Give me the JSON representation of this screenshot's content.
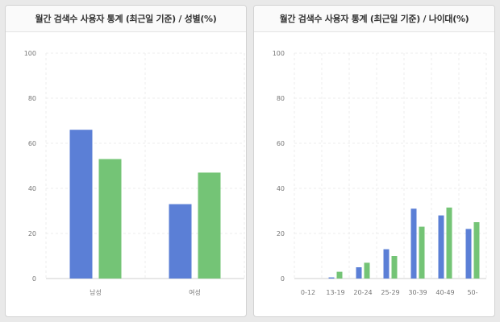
{
  "panels": [
    {
      "title": "월간 검색수 사용자 통계 (최근일 기준) / 성별(%)"
    },
    {
      "title": "월간 검색수 사용자 통계 (최근일 기준) / 나이대(%)"
    }
  ],
  "colors": {
    "pc": "#5b7fd6",
    "mobile": "#74c476"
  },
  "chart_data": [
    {
      "type": "bar",
      "title": "월간 검색수 사용자 통계 (최근일 기준) / 성별(%)",
      "categories": [
        "남성",
        "여성"
      ],
      "series": [
        {
          "values": [
            66,
            33
          ]
        },
        {
          "values": [
            53,
            47
          ]
        }
      ],
      "ylim": [
        0,
        100
      ],
      "yticks": [
        0,
        20,
        40,
        60,
        80,
        100
      ],
      "grid": true
    },
    {
      "type": "bar",
      "title": "월간 검색수 사용자 통계 (최근일 기준) / 나이대(%)",
      "categories": [
        "0-12",
        "13-19",
        "20-24",
        "25-29",
        "30-39",
        "40-49",
        "50-"
      ],
      "series": [
        {
          "values": [
            0,
            0.5,
            5,
            13,
            31,
            28,
            22
          ]
        },
        {
          "values": [
            0,
            3,
            7,
            10,
            23,
            31.5,
            25
          ]
        }
      ],
      "ylim": [
        0,
        100
      ],
      "yticks": [
        0,
        20,
        40,
        60,
        80,
        100
      ],
      "grid": true
    }
  ]
}
